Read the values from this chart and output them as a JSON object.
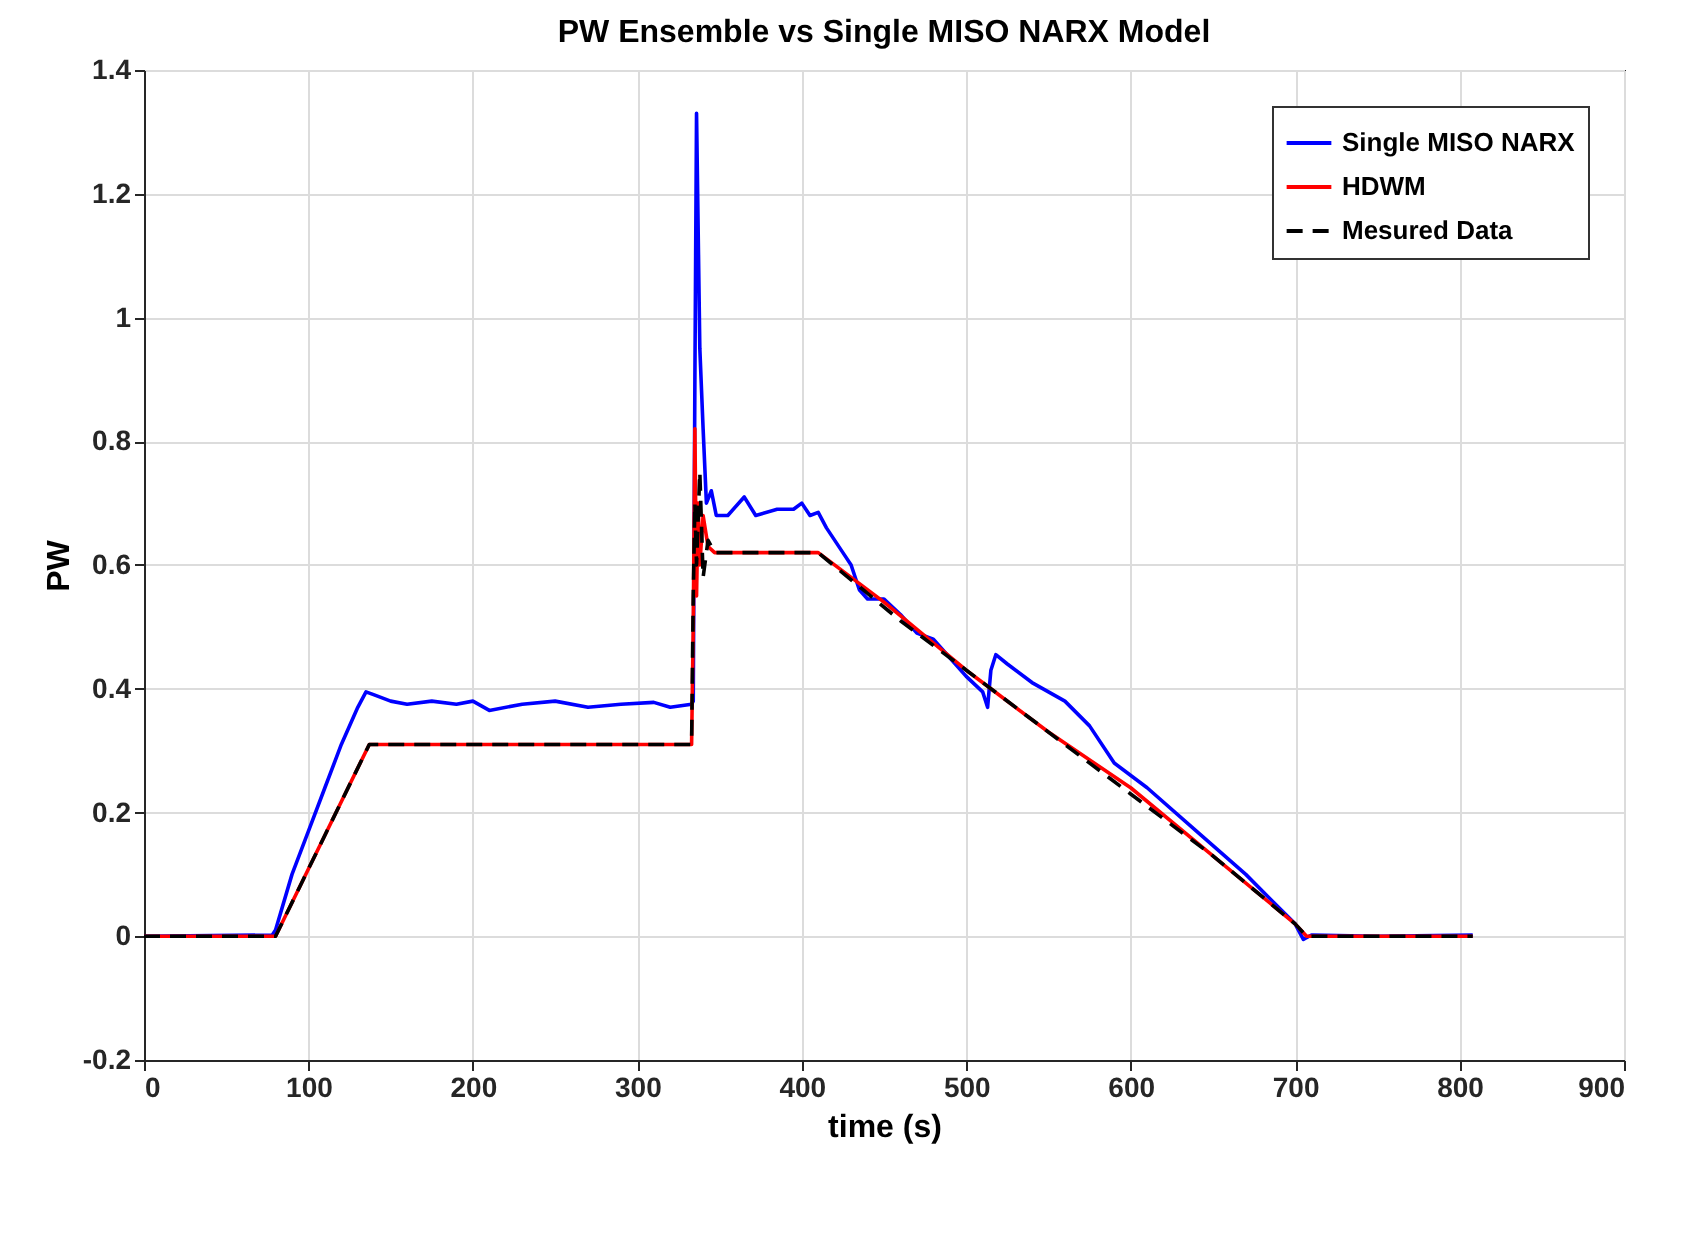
{
  "chart_data": {
    "type": "line",
    "title": "PW Ensemble vs Single MISO NARX Model",
    "xlabel": "time (s)",
    "ylabel": "PW",
    "xlim": [
      0,
      900
    ],
    "xticks": [
      0,
      100,
      200,
      300,
      400,
      500,
      600,
      700,
      800,
      900
    ],
    "ylim": [
      -0.2,
      1.4
    ],
    "yticks": [
      -0.2,
      0,
      0.2,
      0.4,
      0.6,
      0.8,
      1,
      1.2,
      1.4
    ],
    "grid": true,
    "legend": "top right",
    "series": [
      {
        "name": "Single MISO NARX",
        "color": "#0000ff",
        "line_style": "solid",
        "x": [
          0,
          78,
          80,
          90,
          100,
          110,
          120,
          130,
          135,
          140,
          150,
          160,
          175,
          190,
          200,
          210,
          230,
          250,
          270,
          290,
          310,
          320,
          333,
          334,
          335,
          336,
          338,
          340,
          342,
          345,
          348,
          355,
          365,
          372,
          385,
          395,
          400,
          405,
          410,
          415,
          425,
          430,
          435,
          440,
          450,
          460,
          470,
          480,
          490,
          500,
          510,
          513,
          515,
          518,
          525,
          540,
          560,
          575,
          590,
          610,
          640,
          670,
          700,
          705,
          710,
          750,
          808
        ],
        "values": [
          0,
          0.002,
          0.01,
          0.1,
          0.17,
          0.24,
          0.31,
          0.37,
          0.395,
          0.39,
          0.38,
          0.375,
          0.38,
          0.375,
          0.38,
          0.365,
          0.375,
          0.38,
          0.37,
          0.375,
          0.378,
          0.37,
          0.375,
          0.38,
          0.9,
          1.33,
          0.95,
          0.82,
          0.7,
          0.72,
          0.68,
          0.68,
          0.71,
          0.68,
          0.69,
          0.69,
          0.7,
          0.68,
          0.685,
          0.66,
          0.62,
          0.6,
          0.56,
          0.545,
          0.545,
          0.52,
          0.49,
          0.48,
          0.45,
          0.42,
          0.395,
          0.37,
          0.43,
          0.455,
          0.44,
          0.41,
          0.38,
          0.34,
          0.28,
          0.24,
          0.17,
          0.1,
          0.02,
          -0.005,
          0.002,
          0,
          0.002
        ]
      },
      {
        "name": "HDWM",
        "color": "#ff0000",
        "line_style": "solid",
        "x": [
          0,
          80,
          137,
          333,
          334,
          335,
          336,
          337,
          338,
          340,
          343,
          347,
          410,
          450,
          500,
          515,
          550,
          600,
          650,
          700,
          707,
          808
        ],
        "values": [
          0,
          0,
          0.31,
          0.31,
          0.5,
          0.82,
          0.55,
          0.7,
          0.6,
          0.68,
          0.63,
          0.62,
          0.62,
          0.54,
          0.43,
          0.4,
          0.33,
          0.24,
          0.13,
          0.02,
          0,
          0
        ]
      },
      {
        "name": "Mesured Data",
        "color": "#000000",
        "line_style": "dashed",
        "x": [
          0,
          80,
          137,
          333,
          334,
          335,
          336,
          338,
          340,
          343,
          347,
          410,
          460,
          520,
          600,
          650,
          700,
          707,
          808
        ],
        "values": [
          0,
          0,
          0.31,
          0.31,
          0.55,
          0.7,
          0.6,
          0.75,
          0.58,
          0.64,
          0.62,
          0.62,
          0.51,
          0.39,
          0.23,
          0.13,
          0.02,
          0,
          0
        ]
      }
    ]
  }
}
